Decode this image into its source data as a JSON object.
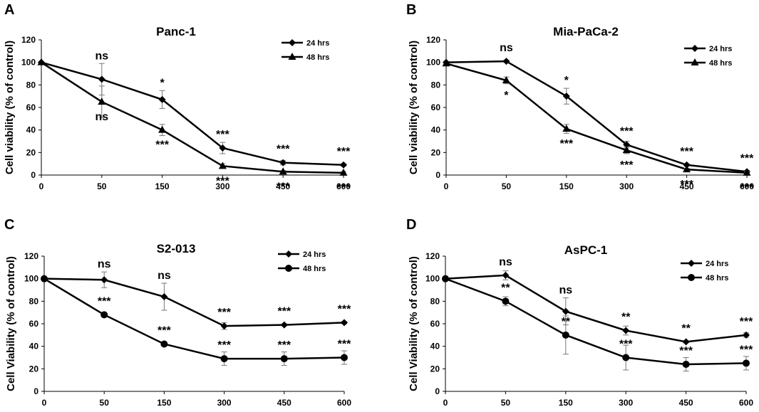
{
  "chart_data": [
    {
      "type": "line",
      "panel": "A",
      "title": "Panc-1",
      "xlabel": "",
      "ylabel": "Cell viability (% of control)",
      "ylim": [
        0,
        120
      ],
      "yticks": [
        "0",
        "20",
        "40",
        "60",
        "80",
        "100",
        "120"
      ],
      "categories": [
        "0",
        "50",
        "150",
        "300",
        "450",
        "600"
      ],
      "legend_position": "top-right",
      "series": [
        {
          "name": "24 hrs",
          "marker": "diamond",
          "values": [
            100,
            85,
            67,
            24,
            11,
            9
          ],
          "errors": [
            0,
            14,
            8,
            5,
            2,
            1
          ],
          "labels": [
            "",
            "ns",
            "*",
            "***",
            "***",
            "***"
          ]
        },
        {
          "name": "48 hrs",
          "marker": "triangle",
          "values": [
            100,
            65,
            40,
            8,
            3,
            2
          ],
          "errors": [
            0,
            14,
            5,
            2,
            1,
            1
          ],
          "labels": [
            "",
            "ns",
            "***",
            "***",
            "***",
            "***"
          ]
        }
      ]
    },
    {
      "type": "line",
      "panel": "B",
      "title": "Mia-PaCa-2",
      "xlabel": "",
      "ylabel": "Cell viability (% of control)",
      "ylim": [
        0,
        120
      ],
      "yticks": [
        "0",
        "20",
        "40",
        "60",
        "80",
        "100",
        "120"
      ],
      "categories": [
        "0",
        "50",
        "150",
        "300",
        "450",
        "600"
      ],
      "legend_position": "top-right",
      "series": [
        {
          "name": "24 hrs",
          "marker": "diamond",
          "values": [
            100,
            101,
            70,
            27,
            9,
            3
          ],
          "errors": [
            0,
            1,
            7,
            3,
            1,
            1
          ],
          "labels": [
            "",
            "ns",
            "*",
            "***",
            "***",
            "***"
          ]
        },
        {
          "name": "48 hrs",
          "marker": "triangle",
          "values": [
            99,
            84,
            41,
            22,
            5,
            2
          ],
          "errors": [
            0,
            3,
            4,
            3,
            1,
            1
          ],
          "labels": [
            "",
            "*",
            "***",
            "***",
            "***",
            "***"
          ]
        }
      ]
    },
    {
      "type": "line",
      "panel": "C",
      "title": "S2-013",
      "xlabel": "",
      "ylabel": "Cell Viability (% of control)",
      "ylim": [
        0,
        120
      ],
      "yticks": [
        "0",
        "20",
        "40",
        "60",
        "80",
        "100",
        "120"
      ],
      "categories": [
        "0",
        "50",
        "150",
        "300",
        "450",
        "600"
      ],
      "legend_position": "top-right",
      "series": [
        {
          "name": "24 hrs",
          "marker": "diamond",
          "values": [
            100,
            99,
            84,
            58,
            59,
            61
          ],
          "errors": [
            0,
            7,
            12,
            3,
            1,
            1
          ],
          "labels": [
            "",
            "ns",
            "ns",
            "***",
            "***",
            "***"
          ]
        },
        {
          "name": "48 hrs",
          "marker": "circle",
          "values": [
            100,
            68,
            42,
            29,
            29,
            30
          ],
          "errors": [
            0,
            1,
            2,
            6,
            6,
            6
          ],
          "labels": [
            "",
            "***",
            "***",
            "***",
            "***",
            "***"
          ]
        }
      ]
    },
    {
      "type": "line",
      "panel": "D",
      "title": "AsPC-1",
      "xlabel": "",
      "ylabel": "Cell Viability (% of control)",
      "ylim": [
        0,
        120
      ],
      "yticks": [
        "0",
        "20",
        "40",
        "60",
        "80",
        "100",
        "120"
      ],
      "categories": [
        "0",
        "50",
        "150",
        "300",
        "450",
        "600"
      ],
      "legend_position": "top-right",
      "series": [
        {
          "name": "24 hrs",
          "marker": "diamond",
          "values": [
            100,
            103,
            71,
            54,
            44,
            50
          ],
          "errors": [
            0,
            4,
            12,
            4,
            1,
            2
          ],
          "labels": [
            "",
            "ns",
            "ns",
            "**",
            "**",
            "***"
          ]
        },
        {
          "name": "48 hrs",
          "marker": "circle",
          "values": [
            100,
            80,
            50,
            30,
            24,
            25
          ],
          "errors": [
            0,
            4,
            17,
            11,
            6,
            6
          ],
          "labels": [
            "",
            "**",
            "**",
            "***",
            "***",
            "***"
          ]
        }
      ]
    }
  ]
}
